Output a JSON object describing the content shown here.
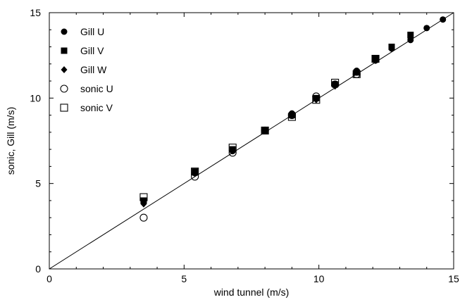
{
  "chart_data": {
    "type": "scatter",
    "title": "",
    "xlabel": "wind tunnel (m/s)",
    "ylabel": "sonic, Gill (m/s)",
    "xlim": [
      0,
      15
    ],
    "ylim": [
      0,
      15
    ],
    "xticks_major": [
      0,
      5,
      10,
      15
    ],
    "yticks_major": [
      0,
      5,
      10,
      15
    ],
    "xticks_minor_step": 1,
    "yticks_minor_step": 1,
    "grid": false,
    "legend_position": "top-left",
    "reference_line": {
      "type": "identity",
      "x": [
        0,
        15
      ],
      "y": [
        0,
        15
      ]
    },
    "series": [
      {
        "name": "Gill U",
        "marker": "filled-circle",
        "x": [
          3.5,
          5.4,
          6.8,
          8.0,
          9.0,
          9.9,
          10.6,
          11.4,
          12.1,
          12.7,
          13.4,
          14.0,
          14.6
        ],
        "y": [
          3.9,
          5.6,
          6.9,
          8.1,
          9.1,
          10.0,
          10.8,
          11.6,
          12.2,
          12.9,
          13.4,
          14.1,
          14.6
        ]
      },
      {
        "name": "Gill V",
        "marker": "filled-square",
        "x": [
          3.5,
          5.4,
          6.8,
          8.0,
          9.0,
          9.9,
          10.6,
          11.4,
          12.1,
          12.7,
          13.4
        ],
        "y": [
          4.0,
          5.7,
          7.0,
          8.1,
          9.0,
          10.0,
          10.8,
          11.5,
          12.3,
          13.0,
          13.7
        ]
      },
      {
        "name": "Gill W",
        "marker": "filled-diamond",
        "x": [
          3.5,
          5.4,
          6.8,
          8.0,
          9.0,
          9.9,
          10.6,
          11.4,
          12.1,
          12.7,
          13.4
        ],
        "y": [
          3.8,
          5.6,
          6.9,
          8.1,
          9.0,
          9.9,
          10.7,
          11.5,
          12.2,
          12.9,
          13.5
        ]
      },
      {
        "name": "sonic U",
        "marker": "open-circle",
        "x": [
          3.5,
          5.4,
          6.8,
          8.0,
          9.0,
          9.9,
          10.6,
          11.4
        ],
        "y": [
          3.0,
          5.4,
          6.8,
          8.1,
          9.0,
          10.1,
          10.8,
          11.4
        ]
      },
      {
        "name": "sonic V",
        "marker": "open-square",
        "x": [
          3.5,
          5.4,
          6.8,
          8.0,
          9.0,
          9.9,
          10.6,
          11.4,
          12.1
        ],
        "y": [
          4.2,
          5.7,
          7.1,
          8.1,
          8.9,
          9.9,
          10.9,
          11.4,
          12.3
        ]
      }
    ]
  }
}
